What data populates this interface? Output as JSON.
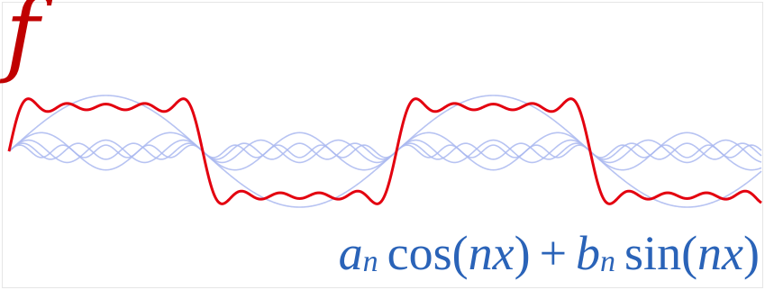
{
  "function_label": "f",
  "formula": {
    "a": "a",
    "sub_a": "n",
    "cos": "cos(",
    "nx1": "nx",
    "close1": ")",
    "plus": "+",
    "b": "b",
    "sub_b": "n",
    "sin": "sin(",
    "nx2": "nx",
    "close2": ")"
  },
  "harmonics": [
    1,
    3,
    5,
    7,
    9
  ],
  "colors": {
    "square_wave": "#e3000f",
    "harmonic": "#aab8f0",
    "formula": "#2a63b8",
    "f_label": "#c00000"
  }
}
